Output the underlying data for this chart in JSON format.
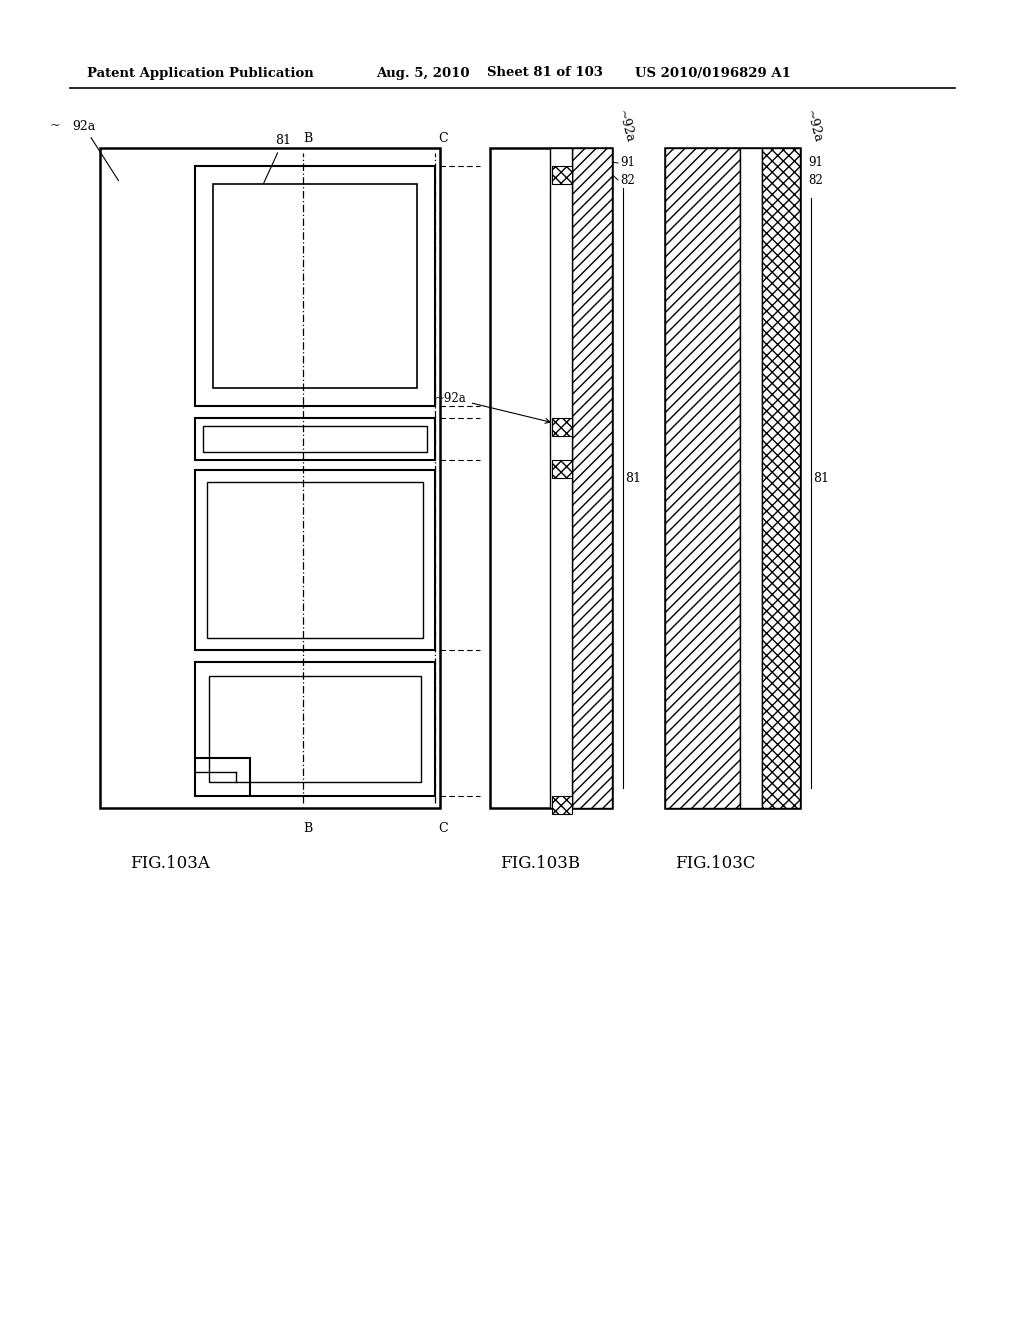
{
  "bg_color": "#ffffff",
  "header_text": "Patent Application Publication",
  "header_date": "Aug. 5, 2010",
  "header_sheet": "Sheet 81 of 103",
  "header_patent": "US 2010/0196829 A1",
  "fig_labels": [
    "FIG.103A",
    "FIG.103B",
    "FIG.103C"
  ],
  "line_color": "#000000"
}
